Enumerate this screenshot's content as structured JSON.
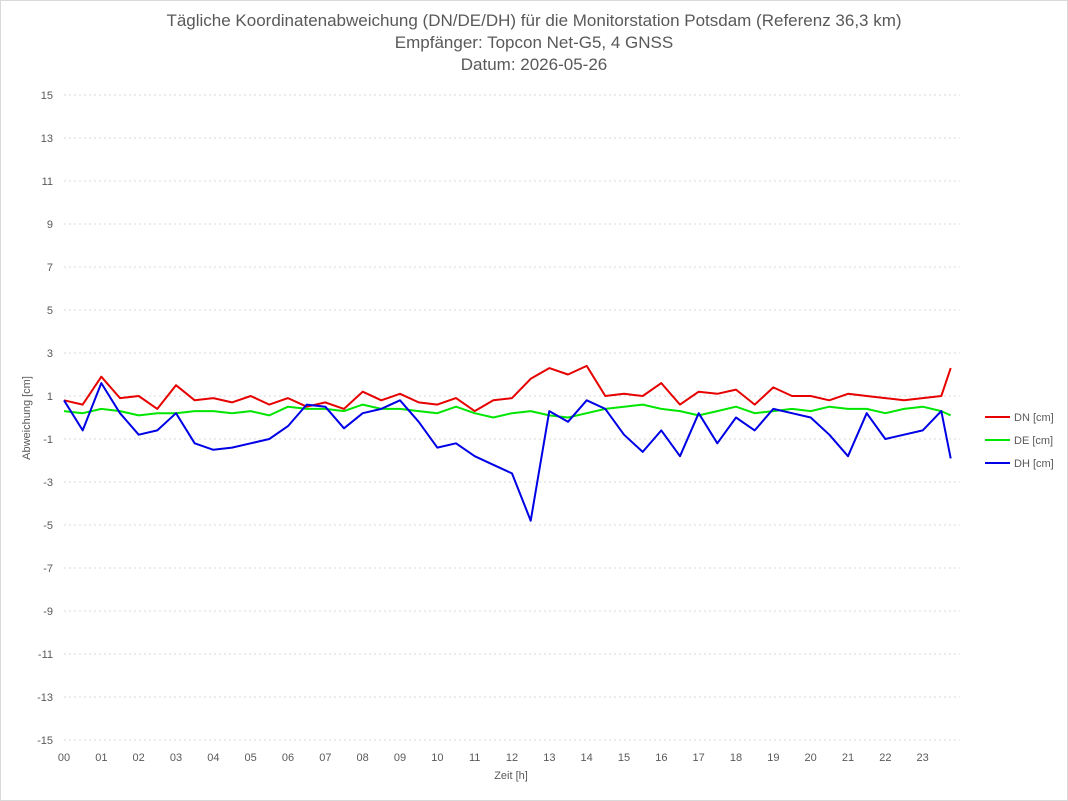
{
  "titles": {
    "line1": "Tägliche Koordinatenabweichung (DN/DE/DH) für die Monitorstation Potsdam (Referenz 36,3 km)",
    "line2": "Empfänger: Topcon Net-G5, 4 GNSS",
    "line3": "Datum: 2026-05-26"
  },
  "chart_data": {
    "type": "line",
    "title": "Tägliche Koordinatenabweichung (DN/DE/DH) für die Monitorstation Potsdam (Referenz 36,3 km)",
    "subtitle": [
      "Empfänger: Topcon Net-G5, 4 GNSS",
      "Datum: 2026-05-26"
    ],
    "xlabel": "Zeit [h]",
    "ylabel": "Abweichung [cm]",
    "ylim": [
      -15,
      15
    ],
    "xlim": [
      0,
      24
    ],
    "grid": true,
    "legend_position": "right",
    "x_ticks": [
      "00",
      "01",
      "02",
      "03",
      "04",
      "05",
      "06",
      "07",
      "08",
      "09",
      "10",
      "11",
      "12",
      "13",
      "14",
      "15",
      "16",
      "17",
      "18",
      "19",
      "20",
      "21",
      "22",
      "23"
    ],
    "y_ticks": [
      "15",
      "13",
      "11",
      "9",
      "7",
      "5",
      "3",
      "1",
      "-1",
      "-3",
      "-5",
      "-7",
      "-9",
      "-11",
      "-13",
      "-15"
    ],
    "x": [
      0.0,
      0.5,
      1.0,
      1.5,
      2.0,
      2.5,
      3.0,
      3.5,
      4.0,
      4.5,
      5.0,
      5.5,
      6.0,
      6.5,
      7.0,
      7.5,
      8.0,
      8.5,
      9.0,
      9.5,
      10.0,
      10.5,
      11.0,
      11.5,
      12.0,
      12.5,
      13.0,
      13.5,
      14.0,
      14.5,
      15.0,
      15.5,
      16.0,
      16.5,
      17.0,
      17.5,
      18.0,
      18.5,
      19.0,
      19.5,
      20.0,
      20.5,
      21.0,
      21.5,
      22.0,
      22.5,
      23.0,
      23.5,
      23.75
    ],
    "series": [
      {
        "name": "DN [cm]",
        "color": "#e60000",
        "values": [
          0.8,
          0.6,
          1.9,
          0.9,
          1.0,
          0.4,
          1.5,
          0.8,
          0.9,
          0.7,
          1.0,
          0.6,
          0.9,
          0.5,
          0.7,
          0.4,
          1.2,
          0.8,
          1.1,
          0.7,
          0.6,
          0.9,
          0.3,
          0.8,
          0.9,
          1.8,
          2.3,
          2.0,
          2.4,
          1.0,
          1.1,
          1.0,
          1.6,
          0.6,
          1.2,
          1.1,
          1.3,
          0.6,
          1.4,
          1.0,
          1.0,
          0.8,
          1.1,
          1.0,
          0.9,
          0.8,
          0.9,
          1.0,
          2.3
        ]
      },
      {
        "name": "DE [cm]",
        "color": "#00e600",
        "values": [
          0.3,
          0.2,
          0.4,
          0.3,
          0.1,
          0.2,
          0.2,
          0.3,
          0.3,
          0.2,
          0.3,
          0.1,
          0.5,
          0.4,
          0.4,
          0.3,
          0.6,
          0.4,
          0.4,
          0.3,
          0.2,
          0.5,
          0.2,
          0.0,
          0.2,
          0.3,
          0.1,
          0.0,
          0.2,
          0.4,
          0.5,
          0.6,
          0.4,
          0.3,
          0.1,
          0.3,
          0.5,
          0.2,
          0.3,
          0.4,
          0.3,
          0.5,
          0.4,
          0.4,
          0.2,
          0.4,
          0.5,
          0.3,
          0.1
        ]
      },
      {
        "name": "DH [cm]",
        "color": "#0000e6",
        "values": [
          0.8,
          -0.6,
          1.6,
          0.2,
          -0.8,
          -0.6,
          0.2,
          -1.2,
          -1.5,
          -1.4,
          -1.2,
          -1.0,
          -0.4,
          0.6,
          0.5,
          -0.5,
          0.2,
          0.4,
          0.8,
          -0.2,
          -1.4,
          -1.2,
          -1.8,
          -2.2,
          -2.6,
          -4.8,
          0.3,
          -0.2,
          0.8,
          0.4,
          -0.8,
          -1.6,
          -0.6,
          -1.8,
          0.2,
          -1.2,
          0.0,
          -0.6,
          0.4,
          0.2,
          0.0,
          -0.8,
          -1.8,
          0.2,
          -1.0,
          -0.8,
          -0.6,
          0.3,
          -1.9
        ]
      }
    ]
  },
  "legend": {
    "items": [
      {
        "label": "DN [cm]",
        "color": "#e60000"
      },
      {
        "label": "DE [cm]",
        "color": "#00e600"
      },
      {
        "label": "DH [cm]",
        "color": "#0000e6"
      }
    ]
  }
}
